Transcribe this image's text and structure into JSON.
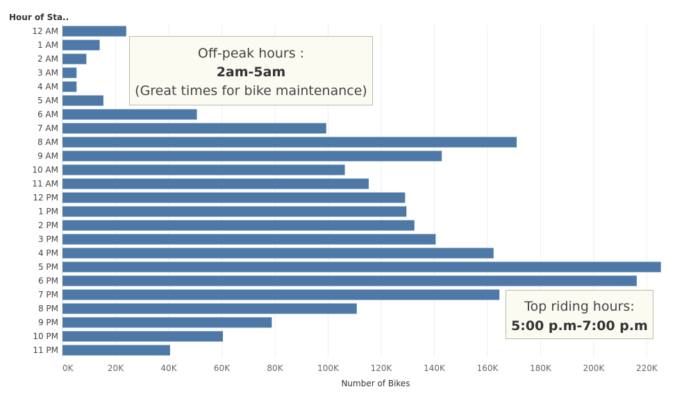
{
  "chart_data": {
    "type": "bar",
    "orientation": "horizontal",
    "row_header": "Hour of Sta..",
    "xlabel": "Number of Bikes",
    "categories": [
      "12 AM",
      "1 AM",
      "2 AM",
      "3 AM",
      "4 AM",
      "5 AM",
      "6 AM",
      "7 AM",
      "8 AM",
      "9 AM",
      "10 AM",
      "11 AM",
      "12 PM",
      "1 PM",
      "2 PM",
      "3 PM",
      "4 PM",
      "5 PM",
      "6 PM",
      "7 PM",
      "8 PM",
      "9 PM",
      "10 PM",
      "11 PM"
    ],
    "values": [
      24000,
      14000,
      9000,
      5300,
      5300,
      15400,
      50600,
      99300,
      171000,
      142800,
      106300,
      115300,
      129000,
      129500,
      132500,
      140500,
      162300,
      225300,
      216200,
      164500,
      110800,
      78800,
      60400,
      40500
    ],
    "xlim": [
      0,
      235000
    ],
    "xticks": [
      "0K",
      "20K",
      "40K",
      "60K",
      "80K",
      "100K",
      "120K",
      "140K",
      "160K",
      "180K",
      "200K",
      "220K"
    ],
    "grid": true,
    "bar_color": "#4e79a7"
  },
  "annotations": {
    "offpeak": {
      "line1": "Off-peak hours :",
      "line2": "2am-5am",
      "line3": "(Great times for bike maintenance)"
    },
    "top": {
      "line1": "Top riding hours:",
      "line2": "5:00 p.m-7:00 p.m"
    }
  }
}
